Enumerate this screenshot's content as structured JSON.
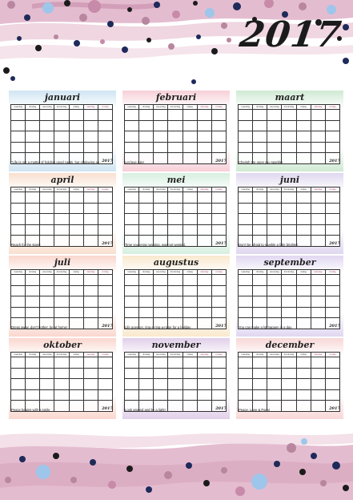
{
  "year": "2017",
  "weekdays": [
    "maandag",
    "dinsdag",
    "woensdag",
    "donderdag",
    "vrijdag",
    "zaterdag",
    "zondag"
  ],
  "months": [
    {
      "name": "januari",
      "quote": "\"Life is not a matter of holding good cards, but of playing a poor hand well.\"",
      "color": "#a9cfe8"
    },
    {
      "name": "februari",
      "quote": "Let love rule!",
      "color": "#f0a9b8"
    },
    {
      "name": "maart",
      "quote": "Cherish the ones you sparkle!",
      "color": "#a8d8b0"
    },
    {
      "name": "april",
      "quote": "Reach for the stars!",
      "color": "#f3c6a8"
    },
    {
      "name": "mei",
      "quote": "Time you enjoy wasting, was not wasted.",
      "color": "#b6e2c6"
    },
    {
      "name": "juni",
      "quote": "Don't be afraid to sparkle a little brighter.",
      "color": "#c5b6e2"
    },
    {
      "name": "juli",
      "quote": "Dress away, don't bother, be at home!",
      "color": "#f6b6a6"
    },
    {
      "name": "augustus",
      "quote": "Life goes on, ring-a-ring-a-rosie for a holiday",
      "color": "#f6d6a6"
    },
    {
      "name": "september",
      "quote": "You can make a lot happen in a day",
      "color": "#c8b6e6"
    },
    {
      "name": "oktober",
      "quote": "Peace begins with a smile",
      "color": "#f6b6a6"
    },
    {
      "name": "november",
      "quote": "Look around and be a light!",
      "color": "#c8a8d8"
    },
    {
      "name": "december",
      "quote": "Peace, Love & Party!",
      "color": "#f3b6b6"
    }
  ],
  "colors": {
    "pink": "#d9a9c0",
    "mauve": "#b8869f",
    "navy": "#1e2a5a",
    "lightblue": "#9ec6ea",
    "dark": "#1b1b1b"
  }
}
